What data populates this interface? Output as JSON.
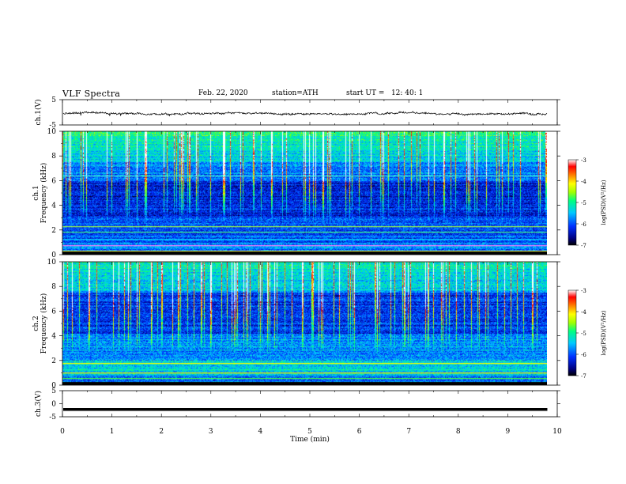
{
  "header": {
    "title": "VLF Spectra",
    "date": "Feb. 22, 2020",
    "station": "station=ATH",
    "start_ut": "start UT =   12: 40: 1"
  },
  "chart_data": [
    {
      "type": "line",
      "panel": "ch1-waveform",
      "ylabel": "ch.1(V)",
      "ylim": [
        -5,
        5
      ],
      "y_ticks": [
        "5",
        "-5"
      ],
      "xlim": [
        0,
        10
      ],
      "series": [
        {
          "values_description_mean": -0.5,
          "noise_range": [
            -1.5,
            0.5
          ]
        }
      ],
      "color": "#000000"
    },
    {
      "type": "heatmap",
      "panel": "ch1-spectrogram",
      "ylabel": "Frequency (kHz)",
      "channel_label": "ch.1",
      "ylim": [
        0,
        10
      ],
      "y_ticks": [
        "0",
        "2",
        "4",
        "6",
        "8",
        "10"
      ],
      "xlim": [
        0,
        9.8
      ],
      "colorbar": {
        "label": "log(PSD)(V²/Hz)",
        "range": [
          -7,
          -3
        ],
        "ticks": [
          "-3",
          "-4",
          "-5",
          "-6",
          "-7"
        ]
      }
    },
    {
      "type": "heatmap",
      "panel": "ch2-spectrogram",
      "ylabel": "Frequency (kHz)",
      "channel_label": "ch.2",
      "ylim": [
        0,
        10
      ],
      "y_ticks": [
        "0",
        "2",
        "4",
        "6",
        "8",
        "10"
      ],
      "xlim": [
        0,
        9.8
      ],
      "colorbar": {
        "label": "log(PSD)(V²/Hz)",
        "range": [
          -7,
          -3
        ],
        "ticks": [
          "-3",
          "-4",
          "-5",
          "-6",
          "-7"
        ]
      }
    },
    {
      "type": "line",
      "panel": "ch3-waveform",
      "ylabel": "ch.3(V)",
      "ylim": [
        -5,
        5
      ],
      "y_ticks": [
        "5",
        "0",
        "-5"
      ],
      "xlim": [
        0,
        10
      ],
      "series": [
        {
          "constant": -2.2
        }
      ],
      "color": "#000000"
    }
  ],
  "x_axis": {
    "label": "Time (min)",
    "ticks": [
      "0",
      "1",
      "2",
      "3",
      "4",
      "5",
      "6",
      "7",
      "8",
      "9",
      "10"
    ]
  },
  "colors": {
    "line": "#000000",
    "background": "#ffffff"
  }
}
